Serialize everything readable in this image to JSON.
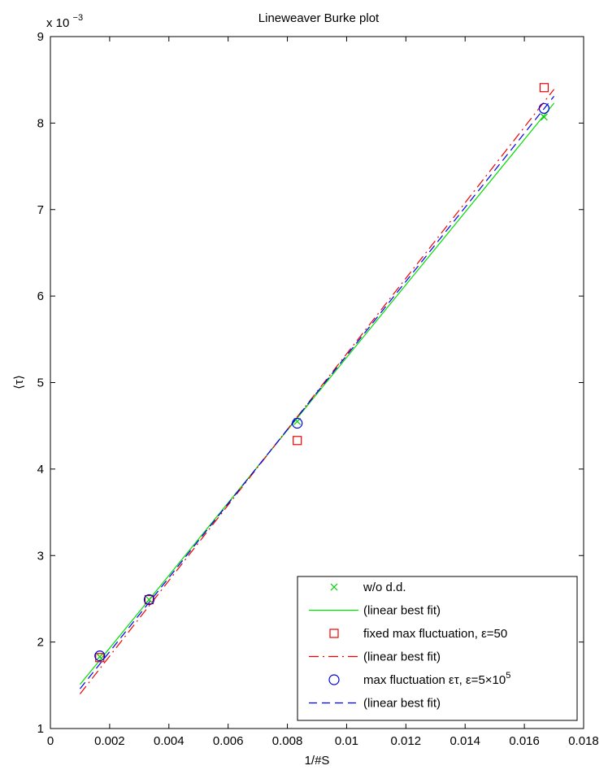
{
  "chart_data": {
    "type": "scatter",
    "title": "Lineweaver Burke plot",
    "xlabel": "1/#S",
    "ylabel": "⟨τ⟩",
    "xlim": [
      0,
      0.018
    ],
    "ylim": [
      0.001,
      0.009
    ],
    "x_ticks": [
      0,
      0.002,
      0.004,
      0.006,
      0.008,
      0.01,
      0.012,
      0.014,
      0.016,
      0.018
    ],
    "x_tick_labels": [
      "0",
      "0.002",
      "0.004",
      "0.006",
      "0.008",
      "0.01",
      "0.012",
      "0.014",
      "0.016",
      "0.018"
    ],
    "y_ticks": [
      0.001,
      0.002,
      0.003,
      0.004,
      0.005,
      0.006,
      0.007,
      0.008,
      0.009
    ],
    "y_tick_labels": [
      "1",
      "2",
      "3",
      "4",
      "5",
      "6",
      "7",
      "8",
      "9"
    ],
    "y_exponent_base": "x 10",
    "y_exponent_power": "−3",
    "grid": false,
    "legend_position": "bottom-right",
    "series": [
      {
        "name": "w/o d.d.",
        "kind": "markers",
        "marker": "x",
        "color": "#00cc00",
        "x": [
          0.001667,
          0.003333,
          0.008333,
          0.016667
        ],
        "y": [
          0.00183,
          0.00249,
          0.00455,
          0.00807
        ]
      },
      {
        "name": "(linear best fit)",
        "kind": "line",
        "dash": "solid",
        "color": "#00dd00",
        "x": [
          0.001,
          0.017
        ],
        "y": [
          0.00151,
          0.00823
        ]
      },
      {
        "name": "fixed max fluctuation, ε=50",
        "kind": "markers",
        "marker": "square",
        "color": "#ee0000",
        "x": [
          0.001667,
          0.003333,
          0.008333,
          0.016667
        ],
        "y": [
          0.00182,
          0.00249,
          0.00433,
          0.00841
        ]
      },
      {
        "name": "(linear best fit)",
        "kind": "line",
        "dash": "dashdot",
        "color": "#ee0000",
        "x": [
          0.001,
          0.017
        ],
        "y": [
          0.0014,
          0.00839
        ]
      },
      {
        "name": "max fluctuation ετ, ε=5×10",
        "name_superscript": "5",
        "kind": "markers",
        "marker": "circle",
        "color": "#0000dd",
        "x": [
          0.001667,
          0.003333,
          0.008333,
          0.016667
        ],
        "y": [
          0.00184,
          0.00249,
          0.00453,
          0.00817
        ]
      },
      {
        "name": "(linear best fit)",
        "kind": "line",
        "dash": "dashed",
        "color": "#0000ee",
        "x": [
          0.001,
          0.017
        ],
        "y": [
          0.00146,
          0.00831
        ]
      }
    ]
  }
}
